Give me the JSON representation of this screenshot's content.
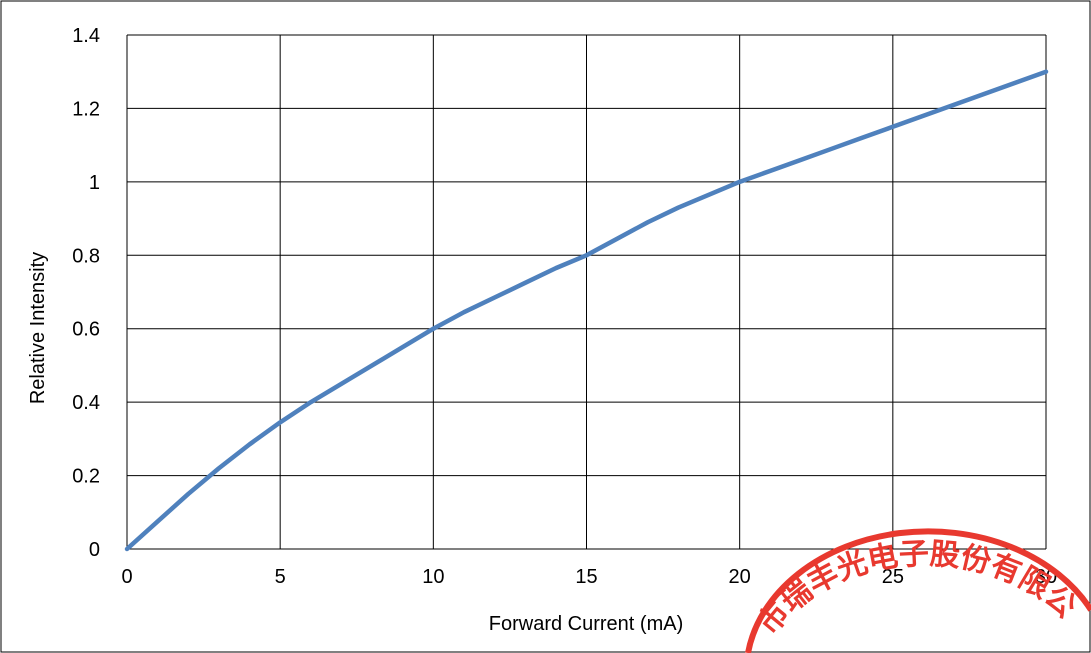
{
  "chart_data": {
    "type": "line",
    "xlabel": "Forward Current (mA)",
    "ylabel": "Relative Intensity",
    "xlim": [
      0,
      30
    ],
    "ylim": [
      0,
      1.4
    ],
    "x_ticks": [
      "0",
      "5",
      "10",
      "15",
      "20",
      "25",
      "30"
    ],
    "y_ticks": [
      "0",
      "0.2",
      "0.4",
      "0.6",
      "0.8",
      "1",
      "1.2",
      "1.4"
    ],
    "grid": true,
    "series": [
      {
        "color": "#4f81bd",
        "x": [
          0,
          1,
          2,
          3,
          4,
          5,
          6,
          7,
          8,
          9,
          10,
          11,
          12,
          13,
          14,
          15,
          16,
          17,
          18,
          19,
          20,
          21,
          22,
          23,
          24,
          25,
          26,
          27,
          28,
          29,
          30
        ],
        "y": [
          0,
          0.075,
          0.15,
          0.22,
          0.285,
          0.345,
          0.4,
          0.45,
          0.5,
          0.55,
          0.6,
          0.645,
          0.685,
          0.725,
          0.765,
          0.8,
          0.845,
          0.89,
          0.93,
          0.965,
          1.0,
          1.03,
          1.06,
          1.09,
          1.12,
          1.15,
          1.18,
          1.21,
          1.24,
          1.27,
          1.3
        ]
      }
    ]
  },
  "stamp": {
    "text": "市瑞丰光电子股份有限公",
    "color": "#e8392f"
  }
}
